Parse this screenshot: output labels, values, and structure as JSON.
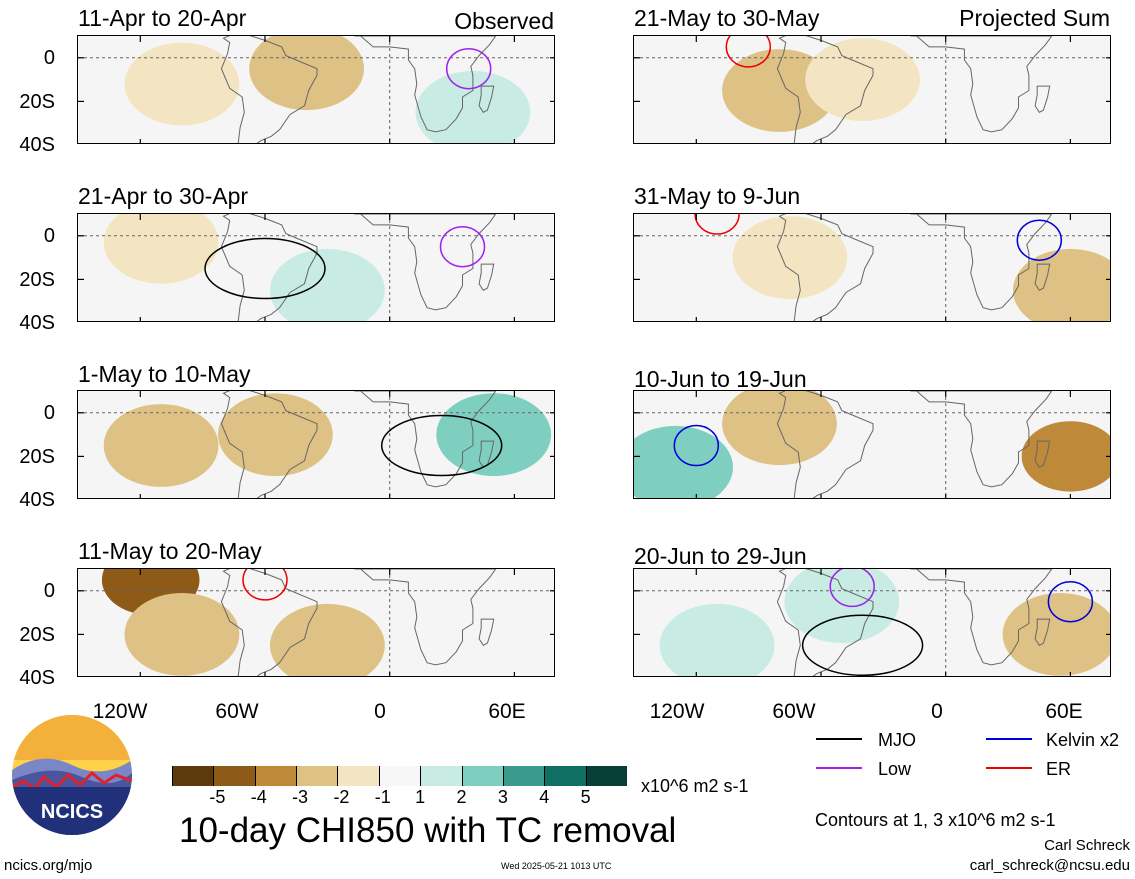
{
  "corner_labels": {
    "left": "Observed",
    "right": "Projected Sum"
  },
  "y_ticks": [
    "0",
    "20S",
    "40S"
  ],
  "x_ticks": [
    "120W",
    "60W",
    "0",
    "60E"
  ],
  "colorbar": {
    "colors": [
      "#5c3a0c",
      "#8e5a17",
      "#be8a3a",
      "#dec285",
      "#f4e5c2",
      "#f7f7f7",
      "#c8ebe3",
      "#7fcfc0",
      "#3a9b8c",
      "#0f6f62",
      "#073f37"
    ],
    "tick_labels": [
      "-5",
      "-4",
      "-3",
      "-2",
      "-1",
      "1",
      "2",
      "3",
      "4",
      "5"
    ],
    "units": "x10^6 m2 s-1"
  },
  "legend": [
    {
      "label": "MJO",
      "color": "#000000"
    },
    {
      "label": "Kelvin x2",
      "color": "#0000dd"
    },
    {
      "label": "Low",
      "color": "#a020f0"
    },
    {
      "label": "ER",
      "color": "#ee0000"
    }
  ],
  "contour_note": "Contours at 1, 3 x10^6 m2 s-1",
  "main_title": "10-day CHI850 with TC removal",
  "footer": {
    "site": "ncics.org/mjo",
    "timestamp": "Wed 2025-05-21 1013 UTC",
    "author": "Carl Schreck",
    "email": "carl_schreck@ncsu.edu"
  },
  "logo": {
    "text": "NCICS"
  },
  "chart_data": [
    {
      "type": "heatmap",
      "period": "11-Apr to 20-Apr",
      "group": "Observed",
      "features": [
        {
          "kind": "fill",
          "lon": -100,
          "lat": -12,
          "value": -1.2
        },
        {
          "kind": "fill",
          "lon": -40,
          "lat": -5,
          "value": -2
        },
        {
          "kind": "fill",
          "lon": 40,
          "lat": -25,
          "value": 1
        },
        {
          "kind": "contour",
          "group": "Low",
          "lon": 38,
          "lat": -5
        }
      ]
    },
    {
      "type": "heatmap",
      "period": "21-Apr to 30-Apr",
      "group": "Observed",
      "features": [
        {
          "kind": "fill",
          "lon": -110,
          "lat": -3,
          "value": -1
        },
        {
          "kind": "fill",
          "lon": -30,
          "lat": -25,
          "value": 1
        },
        {
          "kind": "contour",
          "group": "MJO",
          "lon": -60,
          "lat": -15
        },
        {
          "kind": "contour",
          "group": "Low",
          "lon": 35,
          "lat": -5
        }
      ]
    },
    {
      "type": "heatmap",
      "period": "1-May to 10-May",
      "group": "Observed",
      "features": [
        {
          "kind": "fill",
          "lon": -110,
          "lat": -15,
          "value": -2
        },
        {
          "kind": "fill",
          "lon": -55,
          "lat": -10,
          "value": -2
        },
        {
          "kind": "fill",
          "lon": 50,
          "lat": -10,
          "value": 2
        },
        {
          "kind": "contour",
          "group": "MJO",
          "lon": 25,
          "lat": -15
        }
      ]
    },
    {
      "type": "heatmap",
      "period": "11-May to 20-May",
      "group": "Observed",
      "features": [
        {
          "kind": "fill",
          "lon": -115,
          "lat": 5,
          "value": -4
        },
        {
          "kind": "fill",
          "lon": -100,
          "lat": -20,
          "value": -2
        },
        {
          "kind": "fill",
          "lon": -30,
          "lat": -25,
          "value": -2
        },
        {
          "kind": "contour",
          "group": "ER",
          "lon": -60,
          "lat": 5
        }
      ]
    },
    {
      "type": "heatmap",
      "period": "21-May to 30-May",
      "group": "Projected Sum",
      "features": [
        {
          "kind": "fill",
          "lon": -80,
          "lat": -15,
          "value": -2
        },
        {
          "kind": "fill",
          "lon": -40,
          "lat": -10,
          "value": -1
        },
        {
          "kind": "contour",
          "group": "ER",
          "lon": -95,
          "lat": 5
        }
      ]
    },
    {
      "type": "heatmap",
      "period": "31-May to 9-Jun",
      "group": "Projected Sum",
      "features": [
        {
          "kind": "fill",
          "lon": 60,
          "lat": -25,
          "value": -1.5
        },
        {
          "kind": "fill",
          "lon": -75,
          "lat": -10,
          "value": -1
        },
        {
          "kind": "contour",
          "group": "Kelvin x2",
          "lon": 45,
          "lat": -2
        },
        {
          "kind": "contour",
          "group": "ER",
          "lon": -110,
          "lat": 10
        }
      ]
    },
    {
      "type": "heatmap",
      "period": "10-Jun to 19-Jun",
      "group": "Projected Sum",
      "features": [
        {
          "kind": "fill",
          "lon": 60,
          "lat": -20,
          "value": -3
        },
        {
          "kind": "fill",
          "lon": -80,
          "lat": -5,
          "value": -2
        },
        {
          "kind": "fill",
          "lon": -130,
          "lat": -25,
          "value": 1.5
        },
        {
          "kind": "contour",
          "group": "Kelvin x2",
          "lon": -120,
          "lat": -15
        }
      ]
    },
    {
      "type": "heatmap",
      "period": "20-Jun to 29-Jun",
      "group": "Projected Sum",
      "features": [
        {
          "kind": "fill",
          "lon": 55,
          "lat": -20,
          "value": -1.5
        },
        {
          "kind": "fill",
          "lon": -50,
          "lat": -5,
          "value": 1
        },
        {
          "kind": "fill",
          "lon": -110,
          "lat": -25,
          "value": 1
        },
        {
          "kind": "contour",
          "group": "MJO",
          "lon": -40,
          "lat": -25
        },
        {
          "kind": "contour",
          "group": "Low",
          "lon": -45,
          "lat": 2
        },
        {
          "kind": "contour",
          "group": "Kelvin x2",
          "lon": 60,
          "lat": -5
        }
      ]
    }
  ]
}
